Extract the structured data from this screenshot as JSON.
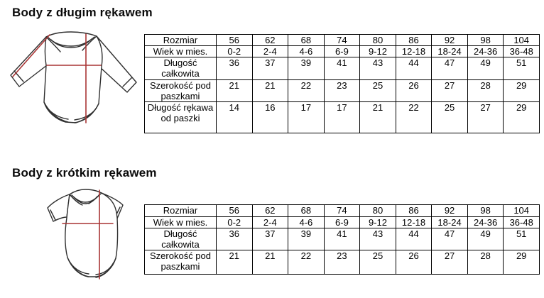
{
  "colors": {
    "background": "#ffffff",
    "measure_line": "#a93434",
    "outline": "#2f2f2f",
    "table_border": "#000000",
    "text": "#0a0a0a"
  },
  "sections": [
    {
      "title": "Body z długim rękawem",
      "diagram": "long-sleeve-bodysuit",
      "table": {
        "rows": [
          {
            "label": "Rozmiar",
            "values": [
              "56",
              "62",
              "68",
              "74",
              "80",
              "86",
              "92",
              "98",
              "104"
            ]
          },
          {
            "label": "Wiek w mies.",
            "values": [
              "0-2",
              "2-4",
              "4-6",
              "6-9",
              "9-12",
              "12-18",
              "18-24",
              "24-36",
              "36-48"
            ]
          },
          {
            "label": "Długość całkowita",
            "values": [
              "36",
              "37",
              "39",
              "41",
              "43",
              "44",
              "47",
              "49",
              "51"
            ]
          },
          {
            "label": "Szerokość pod paszkami",
            "values": [
              "21",
              "21",
              "22",
              "23",
              "25",
              "26",
              "27",
              "28",
              "29"
            ]
          },
          {
            "label": "Długość rękawa od paszki",
            "values": [
              "14",
              "16",
              "17",
              "17",
              "21",
              "22",
              "25",
              "27",
              "29"
            ]
          }
        ]
      }
    },
    {
      "title": "Body z krótkim rękawem",
      "diagram": "short-sleeve-bodysuit",
      "table": {
        "rows": [
          {
            "label": "Rozmiar",
            "values": [
              "56",
              "62",
              "68",
              "74",
              "80",
              "86",
              "92",
              "98",
              "104"
            ]
          },
          {
            "label": "Wiek w mies.",
            "values": [
              "0-2",
              "2-4",
              "4-6",
              "6-9",
              "9-12",
              "12-18",
              "18-24",
              "24-36",
              "36-48"
            ]
          },
          {
            "label": "Długość całkowita",
            "values": [
              "36",
              "37",
              "39",
              "41",
              "43",
              "44",
              "47",
              "49",
              "51"
            ]
          },
          {
            "label": "Szerokość pod paszkami",
            "values": [
              "21",
              "21",
              "22",
              "23",
              "25",
              "26",
              "27",
              "28",
              "29"
            ]
          }
        ]
      }
    }
  ]
}
